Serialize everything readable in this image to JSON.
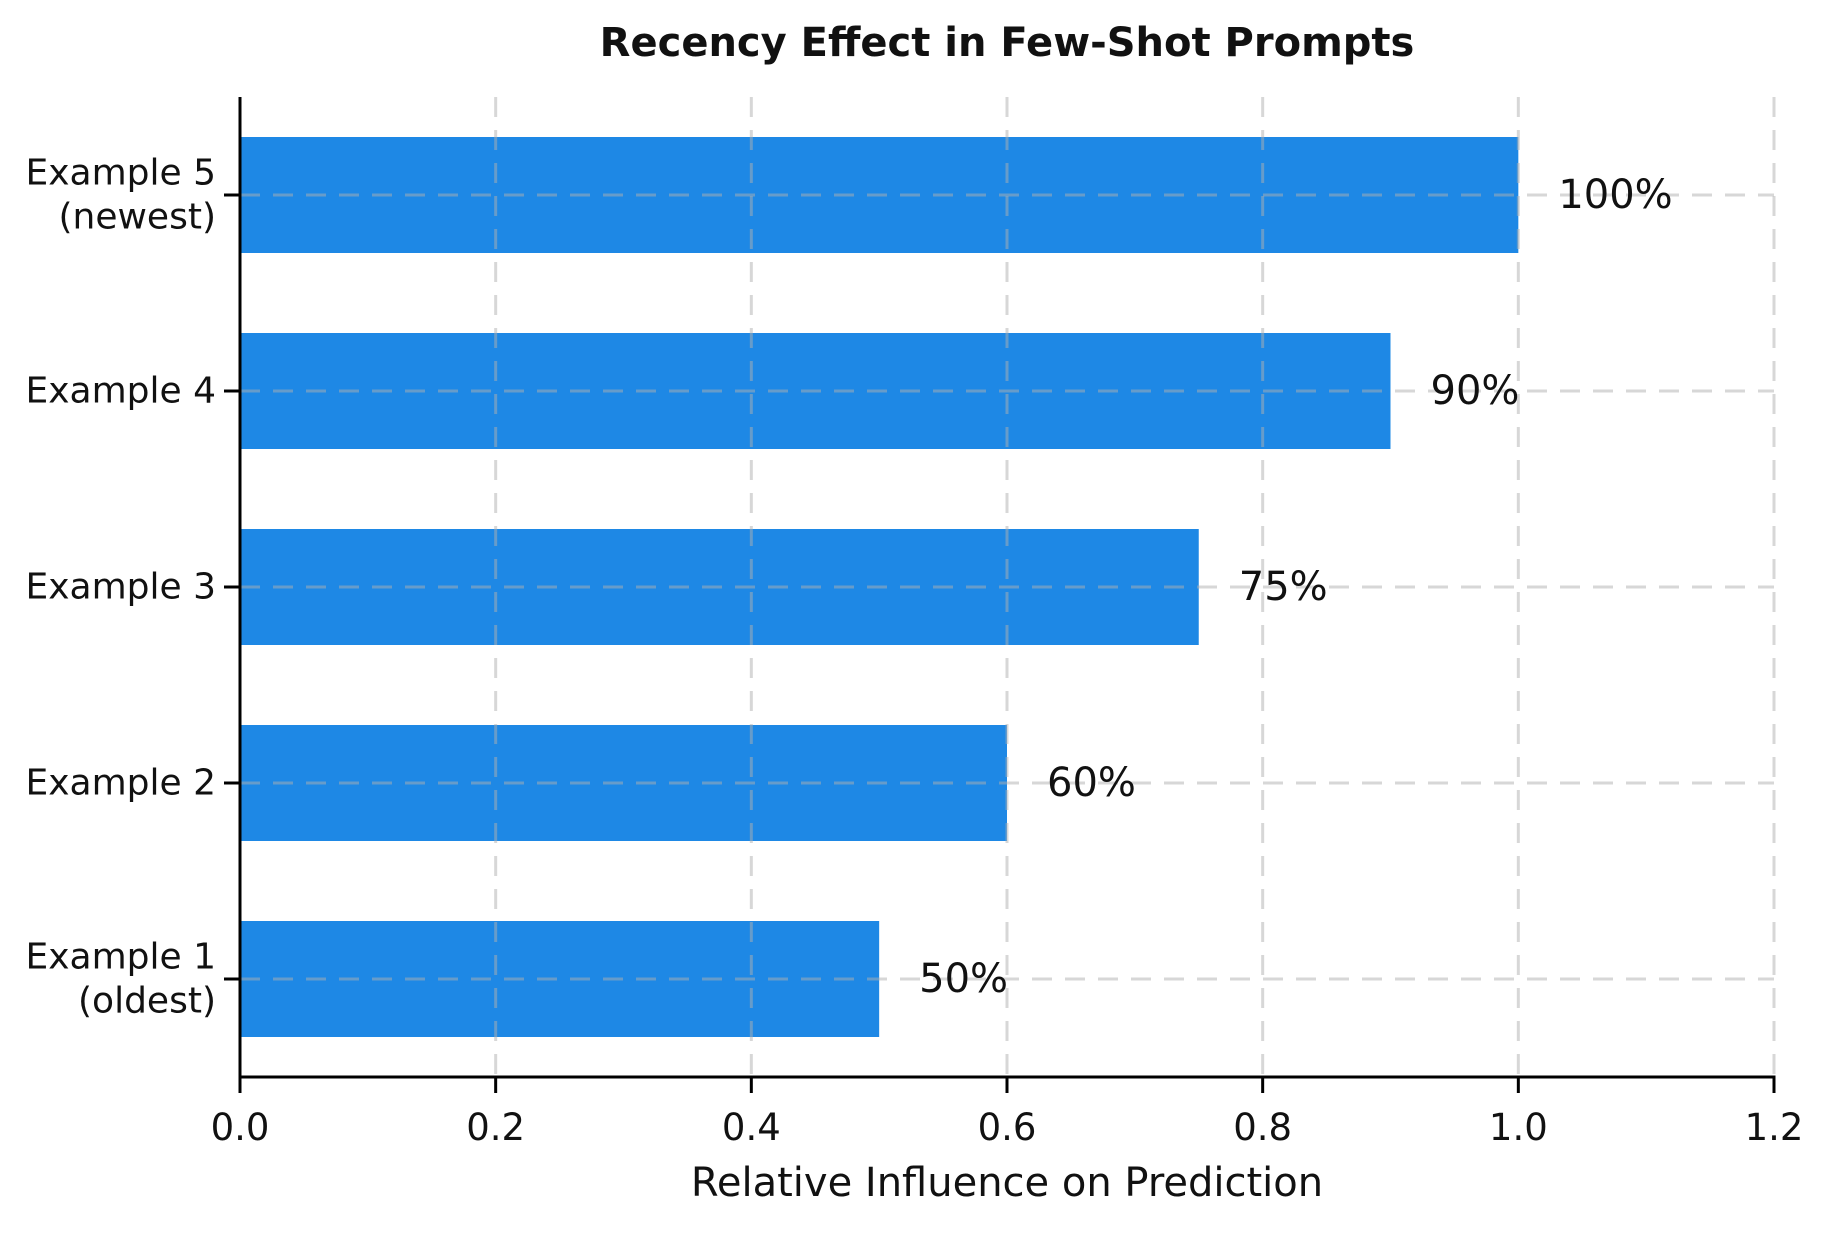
{
  "figure": {
    "background": "#ffffff"
  },
  "chart_data": {
    "type": "bar",
    "orientation": "horizontal",
    "title": "Recency Effect in Few-Shot Prompts",
    "xlabel": "Relative Influence on Prediction",
    "ylabel": "",
    "xlim": [
      0,
      1.2
    ],
    "xticks": [
      0,
      0.2,
      0.4,
      0.6,
      0.8,
      1.0,
      1.2
    ],
    "xtick_labels": [
      "0.0",
      "0.2",
      "0.4",
      "0.6",
      "0.8",
      "1.0",
      "1.2"
    ],
    "categories": [
      "Example 5\n(newest)",
      "Example 4",
      "Example 3",
      "Example 2",
      "Example 1\n(oldest)"
    ],
    "values": [
      1.0,
      0.9,
      0.75,
      0.6,
      0.5
    ],
    "value_labels": [
      "100%",
      "90%",
      "75%",
      "60%",
      "50%"
    ],
    "grid": "both-axes, dashed, drawn above bars",
    "legend": "none",
    "bar_color": "#1E88E5",
    "text_color": "#111111",
    "grid_color": "#b0b0b0",
    "spine_color": "#000000"
  }
}
